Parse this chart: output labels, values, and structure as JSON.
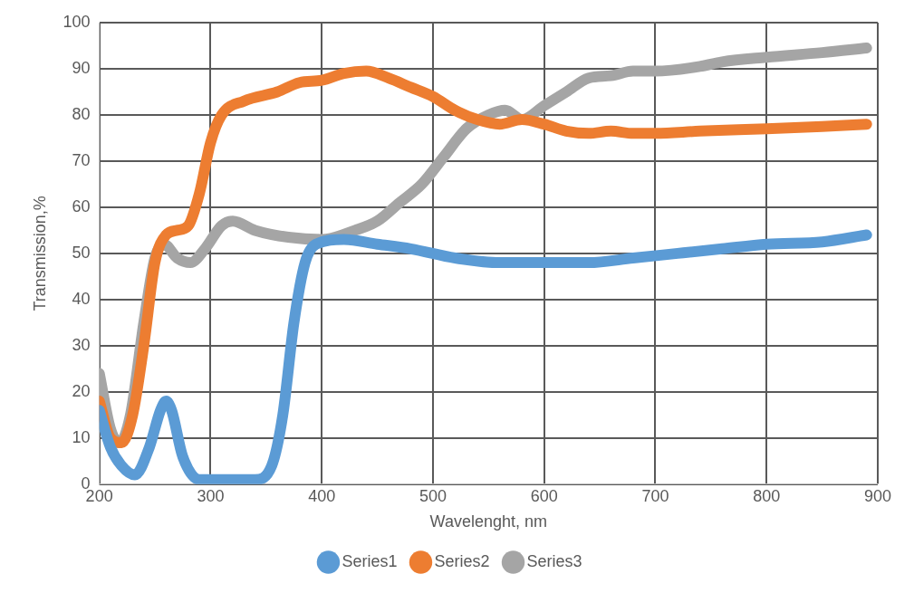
{
  "chart_data": {
    "type": "line",
    "xlabel": "Wavelenght, nm",
    "ylabel": "Transmission,%",
    "xlim": [
      200,
      900
    ],
    "xticks": [
      200,
      300,
      400,
      500,
      600,
      700,
      800,
      900
    ],
    "ylim": [
      0,
      100
    ],
    "yticks": [
      0,
      10,
      20,
      30,
      40,
      50,
      60,
      70,
      80,
      90,
      100
    ],
    "grid": true,
    "legend": "bottom",
    "marker": "none",
    "line_style": "solid",
    "series": [
      {
        "name": "Series1",
        "color": "#5b9bd5",
        "x": [
          200,
          210,
          220,
          232,
          245,
          255,
          260,
          265,
          275,
          290,
          310,
          340,
          355,
          365,
          375,
          385,
          395,
          420,
          450,
          480,
          520,
          560,
          600,
          640,
          680,
          720,
          760,
          800,
          850,
          890
        ],
        "values": [
          16,
          8,
          4,
          2,
          8,
          16,
          18,
          16,
          6,
          1,
          1,
          1,
          4,
          15,
          35,
          48,
          52,
          53,
          52,
          51,
          49,
          48,
          48,
          48,
          49,
          50,
          51,
          52,
          52.5,
          54
        ]
      },
      {
        "name": "Series2",
        "color": "#ed7d31",
        "x": [
          200,
          210,
          220,
          230,
          240,
          250,
          260,
          270,
          280,
          290,
          300,
          310,
          330,
          360,
          380,
          400,
          420,
          440,
          460,
          480,
          500,
          520,
          540,
          560,
          580,
          600,
          620,
          640,
          660,
          680,
          700,
          740,
          800,
          850,
          890
        ],
        "values": [
          18,
          10,
          9,
          15,
          30,
          48,
          54,
          55,
          56,
          63,
          74,
          80,
          83,
          85,
          87,
          87.5,
          89,
          89.5,
          88,
          86,
          84,
          81,
          79,
          78,
          79,
          78,
          76.5,
          76,
          76.5,
          76,
          76,
          76.5,
          77,
          77.5,
          78
        ]
      },
      {
        "name": "Series3",
        "color": "#a5a5a5",
        "x": [
          200,
          210,
          218,
          228,
          240,
          250,
          258,
          270,
          282,
          295,
          310,
          320,
          340,
          370,
          400,
          430,
          450,
          470,
          490,
          510,
          530,
          550,
          565,
          580,
          600,
          620,
          640,
          660,
          680,
          700,
          740,
          760,
          800,
          850,
          890
        ],
        "values": [
          24,
          12,
          9,
          15,
          35,
          49,
          52,
          49,
          48,
          51,
          56,
          57,
          55,
          53.5,
          53,
          55,
          57,
          61,
          65,
          71,
          77,
          80,
          81,
          79,
          82,
          85,
          88,
          88.5,
          89.5,
          89.5,
          90.5,
          91.5,
          92.5,
          93.5,
          94.5
        ]
      }
    ]
  }
}
